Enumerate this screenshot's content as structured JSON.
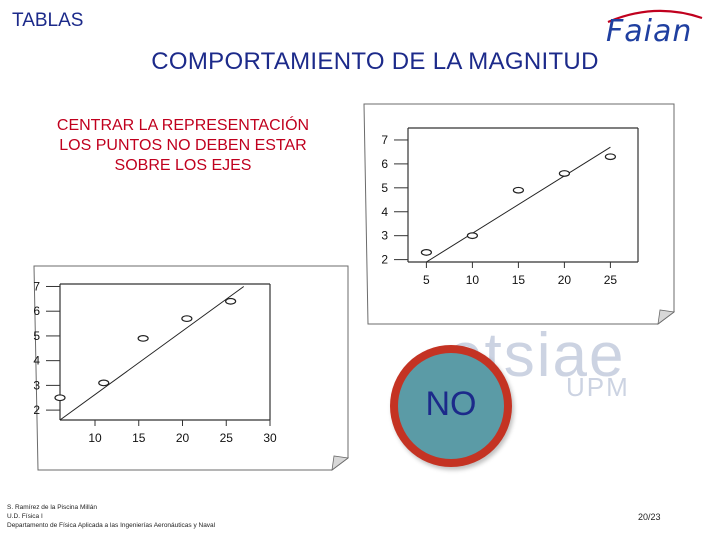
{
  "slide": {
    "section": "TABLAS",
    "title": "COMPORTAMIENTO DE LA MAGNITUD",
    "instruction_lines": [
      "CENTRAR LA REPRESENTACIÓN",
      "LOS PUNTOS NO DEBEN ESTAR",
      "SOBRE LOS EJES"
    ],
    "logo_text": "Faian",
    "watermark": "etsiae",
    "watermark_sub": "UPM",
    "badge_text": "NO",
    "footer_lines": [
      "S. Ramírez de la Piscina Millán",
      "U.D. Física I",
      "Departamento de Física Aplicada a las Ingenierías Aeronáuticas y Naval"
    ],
    "page_number": "20/23"
  },
  "colors": {
    "title_blue": "#1c2a8a",
    "instruction_red": "#c0001e",
    "badge_ring": "#c43323",
    "badge_fill": "#5b9ba6"
  },
  "chart_data": [
    {
      "type": "scatter",
      "title": "",
      "xlabel": "",
      "ylabel": "",
      "x_ticks": [
        "5",
        "10",
        "15",
        "20",
        "25"
      ],
      "y_ticks": [
        "2",
        "3",
        "4",
        "5",
        "6",
        "7"
      ],
      "xlim": [
        3,
        28
      ],
      "ylim": [
        1.9,
        7.5
      ],
      "points": [
        {
          "x": 5,
          "y": 2.3
        },
        {
          "x": 10,
          "y": 3.0
        },
        {
          "x": 15,
          "y": 4.9
        },
        {
          "x": 20,
          "y": 5.6
        },
        {
          "x": 25,
          "y": 6.3
        }
      ],
      "fit_line": {
        "x1": 5,
        "y1": 1.9,
        "x2": 25,
        "y2": 6.7
      },
      "grid": false
    },
    {
      "type": "scatter",
      "title": "",
      "xlabel": "",
      "ylabel": "",
      "x_ticks": [
        "10",
        "15",
        "20",
        "25",
        "30"
      ],
      "y_ticks": [
        "2",
        "3",
        "4",
        "5",
        "6",
        "7"
      ],
      "xlim": [
        6,
        30
      ],
      "ylim": [
        1.6,
        7.1
      ],
      "points": [
        {
          "x": 6,
          "y": 2.5
        },
        {
          "x": 11,
          "y": 3.1
        },
        {
          "x": 15.5,
          "y": 4.9
        },
        {
          "x": 20.5,
          "y": 5.7
        },
        {
          "x": 25.5,
          "y": 6.4
        }
      ],
      "fit_line": {
        "x1": 6,
        "y1": 1.6,
        "x2": 27,
        "y2": 7.0
      },
      "grid": false
    }
  ]
}
